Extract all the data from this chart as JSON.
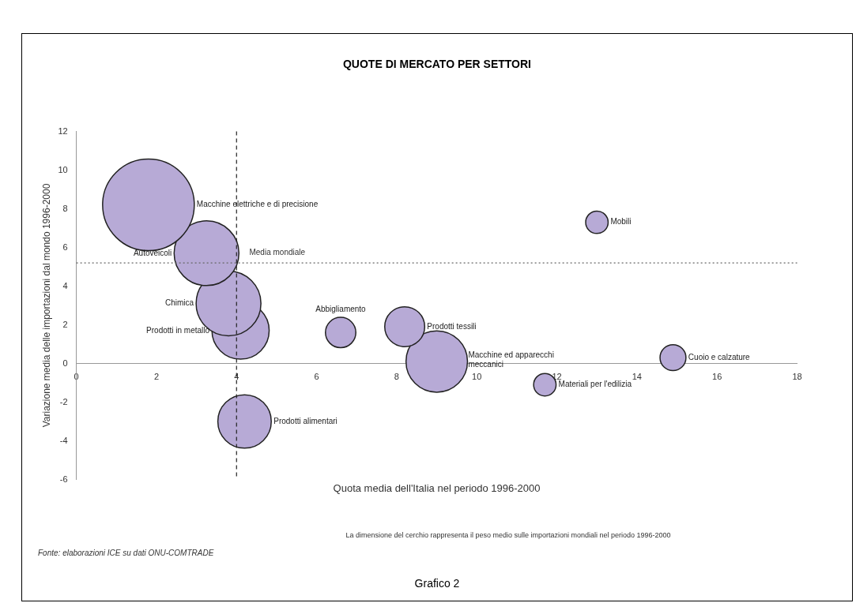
{
  "chart_data": {
    "type": "bubble",
    "title": "QUOTE DI MERCATO PER SETTORI",
    "xlabel": "Quota media dell'Italia nel periodo 1996-2000",
    "ylabel": "Variazione media delle importazioni dal mondo 1996-2000",
    "xlim": [
      0,
      18
    ],
    "xticks": [
      0,
      2,
      4,
      6,
      8,
      10,
      12,
      14,
      16,
      18
    ],
    "ylim": [
      -6,
      12
    ],
    "yticks": [
      -6,
      -4,
      -2,
      0,
      2,
      4,
      6,
      8,
      10,
      12
    ],
    "grid": false,
    "legend": false,
    "series": [
      {
        "name": "Macchine elettriche e di precisione",
        "color": "#b7aad6",
        "x": [
          1.8
        ],
        "values": [
          8.2
        ],
        "sizes": [
          1
        ]
      },
      {
        "name": "Autoveicoli",
        "color": "#b7aad6",
        "x": [
          3.25
        ],
        "values": [
          5.7
        ],
        "sizes": [
          0.5
        ]
      },
      {
        "name": "Chimica",
        "color": "#b7aad6",
        "x": [
          3.8
        ],
        "values": [
          3.1
        ],
        "sizes": [
          0.5
        ]
      },
      {
        "name": "Prodotti in metallo",
        "color": "#b7aad6",
        "x": [
          4.1
        ],
        "values": [
          1.7
        ],
        "sizes": [
          0.39
        ]
      },
      {
        "name": "Abbigliamento",
        "color": "#b7aad6",
        "x": [
          6.6
        ],
        "values": [
          1.6
        ],
        "sizes": [
          0.11
        ]
      },
      {
        "name": "Prodotti tessili",
        "color": "#b7aad6",
        "x": [
          8.2
        ],
        "values": [
          1.9
        ],
        "sizes": [
          0.19
        ]
      },
      {
        "name": "Macchine ed apparecchi meccanici",
        "color": "#b7aad6",
        "x": [
          9.0
        ],
        "values": [
          0.1
        ],
        "sizes": [
          0.45
        ]
      },
      {
        "name": "Mobili",
        "color": "#b7aad6",
        "x": [
          13.0
        ],
        "values": [
          7.3
        ],
        "sizes": [
          0.06
        ]
      },
      {
        "name": "Cuoio e calzature",
        "color": "#b7aad6",
        "x": [
          14.9
        ],
        "values": [
          0.3
        ],
        "sizes": [
          0.08
        ]
      },
      {
        "name": "Materiali per l'edilizia",
        "color": "#b7aad6",
        "x": [
          11.7
        ],
        "values": [
          -1.1
        ],
        "sizes": [
          0.06
        ]
      },
      {
        "name": "Prodotti alimentari",
        "color": "#b7aad6",
        "x": [
          4.2
        ],
        "values": [
          -3.0
        ],
        "sizes": [
          0.34
        ]
      }
    ],
    "ref_lines": [
      {
        "axis": "x",
        "value": 4,
        "line_style": "dashed",
        "color": "#222222"
      },
      {
        "axis": "y",
        "value": 5.2,
        "label": "Media mondiale",
        "line_style": "dotted",
        "color": "#666666"
      }
    ],
    "annotations": [
      "La dimensione del cerchio rappresenta il peso medio sulle importazioni mondiali nel periodo 1996-2000",
      "Fonte: elaborazioni ICE su dati ONU-COMTRADE",
      "Grafico 2"
    ]
  }
}
